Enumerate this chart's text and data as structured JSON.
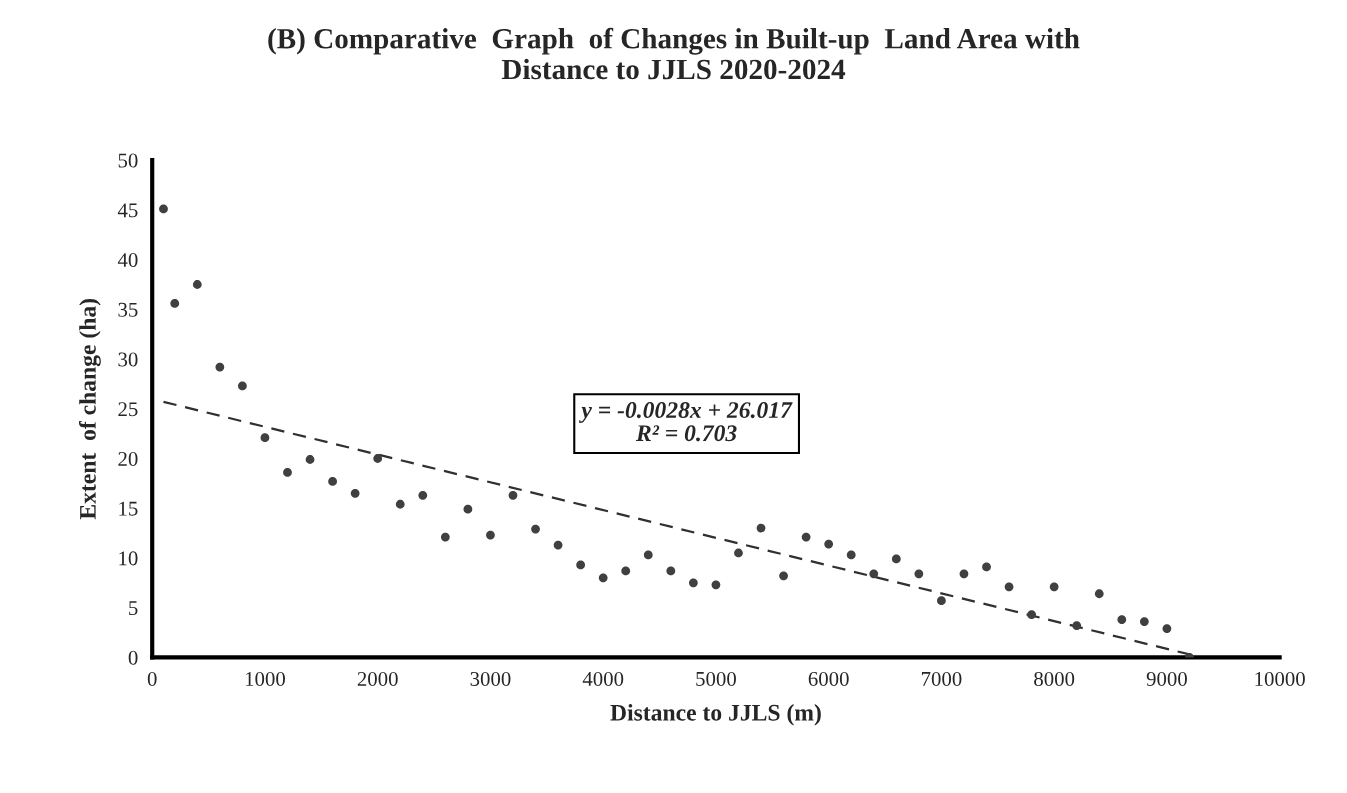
{
  "chart_data": {
    "type": "scatter",
    "title": "(B) Comparative  Graph  of Changes in Built-up  Land Area with\nDistance to JJLS 2020-2024",
    "xlabel": "Distance to JJLS (m)",
    "ylabel": "Extent  of change (ha)",
    "series": [
      {
        "color": "#404040",
        "marker": "circle",
        "x": [
          100,
          200,
          400,
          600,
          800,
          1000,
          1200,
          1400,
          1600,
          1800,
          2000,
          2200,
          2400,
          2600,
          2800,
          3000,
          3200,
          3400,
          3600,
          3800,
          4000,
          4200,
          4400,
          4600,
          4800,
          5000,
          5200,
          5400,
          5600,
          5800,
          6000,
          6200,
          6400,
          6600,
          6800,
          7000,
          7200,
          7400,
          7600,
          7800,
          8000,
          8200,
          8400,
          8600,
          8800,
          9000,
          9200
        ],
        "values": [
          45.1,
          35.6,
          37.5,
          29.2,
          27.3,
          22.1,
          18.6,
          19.9,
          17.7,
          16.5,
          20.0,
          15.4,
          16.3,
          12.1,
          14.9,
          12.3,
          16.3,
          12.9,
          11.3,
          9.3,
          8.0,
          8.7,
          10.3,
          8.7,
          7.5,
          7.3,
          10.5,
          13.0,
          8.2,
          12.1,
          11.4,
          10.3,
          8.4,
          9.9,
          8.4,
          5.7,
          8.4,
          9.1,
          7.1,
          4.3,
          7.1,
          3.2,
          6.4,
          3.8,
          3.6,
          2.9,
          0
        ]
      },
      {
        "type": "line",
        "color": "#303030",
        "line_style": "dashed",
        "x": [
          100,
          9200
        ],
        "values": [
          25.7,
          0.3
        ]
      }
    ],
    "annotations": [
      "y = -0.0028x + 26.017\nR² = 0.703"
    ],
    "xlim": [
      0,
      10000
    ],
    "xticks": [
      0,
      1000,
      2000,
      3000,
      4000,
      5000,
      6000,
      7000,
      8000,
      9000,
      10000
    ],
    "ylim": [
      0,
      50
    ],
    "yticks": [
      0,
      5,
      10,
      15,
      20,
      25,
      30,
      35,
      40,
      45,
      50
    ],
    "grid": false,
    "legend": false
  }
}
